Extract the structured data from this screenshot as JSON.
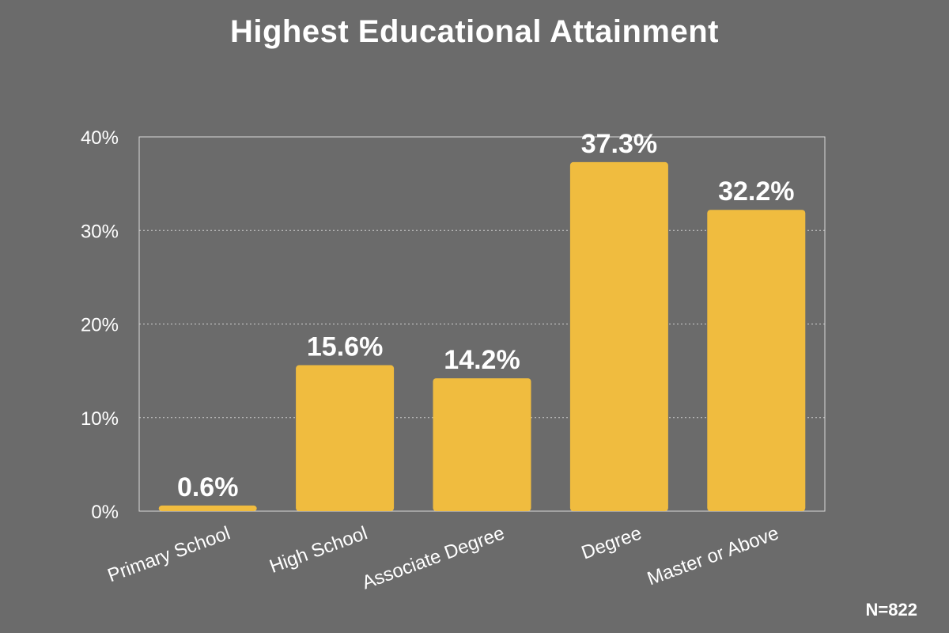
{
  "colors": {
    "background": "#6b6b6b",
    "bar": "#f0bc3f",
    "text": "#ffffff",
    "axis": "#d8d8d8",
    "grid": "#cfcfcf"
  },
  "chart_data": {
    "type": "bar",
    "title": "Highest Educational Attainment",
    "categories": [
      "Primary School",
      "High School",
      "Associate Degree",
      "Degree",
      "Master or Above"
    ],
    "values": [
      0.6,
      15.6,
      14.2,
      37.3,
      32.2
    ],
    "data_labels": [
      "0.6%",
      "15.6%",
      "14.2%",
      "37.3%",
      "32.2%"
    ],
    "yticks": [
      0,
      10,
      20,
      30,
      40
    ],
    "ytick_labels": [
      "0%",
      "10%",
      "20%",
      "30%",
      "40%"
    ],
    "ylim": [
      0,
      40
    ],
    "xlabel": "",
    "ylabel": "",
    "grid": "horizontal-dotted",
    "legend": "none",
    "note": "N=822"
  }
}
